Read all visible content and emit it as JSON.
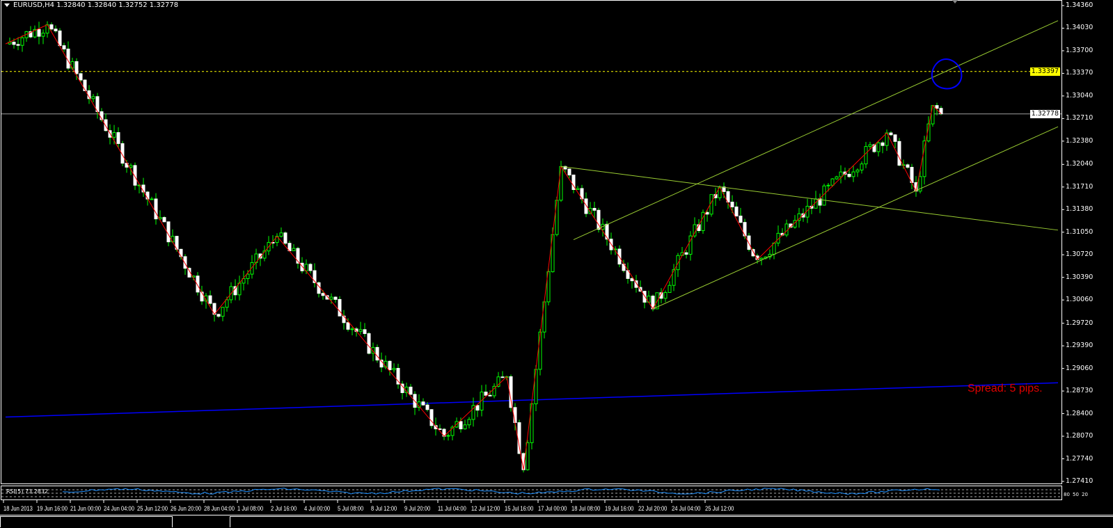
{
  "window": {
    "title": "EURUSD,H4  1.32840 1.32840 1.32752 1.32778"
  },
  "colors": {
    "background": "#000000",
    "bull_body": "#000000",
    "bear_body": "#ffffff",
    "wick": "#00ff00",
    "zigzag": "#ff0000",
    "trendline": "#9acd32",
    "blue_line": "#0000ff",
    "hline": "#ffff00",
    "bid_line": "#a0a0a0",
    "rsi": "#1e90ff",
    "spread_text": "#e00000"
  },
  "price_axis": {
    "labels": [
      "1.34360",
      "1.34030",
      "1.33700",
      "1.33370",
      "1.33040",
      "1.32710",
      "1.32380",
      "1.32040",
      "1.31710",
      "1.31380",
      "1.31050",
      "1.30720",
      "1.30390",
      "1.30060",
      "1.29720",
      "1.29390",
      "1.29060",
      "1.28730",
      "1.28400",
      "1.28070",
      "1.27740",
      "1.27410"
    ],
    "range": [
      1.2741,
      1.3436
    ],
    "hline_tag": "1.33397",
    "bid_tag": "1.32778"
  },
  "time_axis": {
    "labels": [
      "18 Jun 2013",
      "19 Jun 16:00",
      "21 Jun 00:00",
      "24 Jun 04:00",
      "25 Jun 12:00",
      "26 Jun 20:00",
      "28 Jun 04:00",
      "1 Jul 08:00",
      "2 Jul 16:00",
      "4 Jul 00:00",
      "5 Jul 08:00",
      "8 Jul 12:00",
      "9 Jul 20:00",
      "11 Jul 04:00",
      "12 Jul 12:00",
      "15 Jul 16:00",
      "17 Jul 00:00",
      "18 Jul 08:00",
      "19 Jul 16:00",
      "22 Jul 20:00",
      "24 Jul 04:00",
      "25 Jul 12:00"
    ]
  },
  "chart_data": {
    "type": "candlestick",
    "symbol": "EURUSD",
    "timeframe": "H4",
    "last_bar": {
      "open": 1.3284,
      "high": 1.3284,
      "low": 1.32752,
      "close": 1.32778
    },
    "zigzag": [
      {
        "bar": 0,
        "price": 1.338
      },
      {
        "bar": 10,
        "price": 1.3408
      },
      {
        "bar": 50,
        "price": 1.2985
      },
      {
        "bar": 65,
        "price": 1.3099
      },
      {
        "bar": 105,
        "price": 1.2807
      },
      {
        "bar": 120,
        "price": 1.2894
      },
      {
        "bar": 124,
        "price": 1.2758
      },
      {
        "bar": 133,
        "price": 1.3201
      },
      {
        "bar": 155,
        "price": 1.2993
      },
      {
        "bar": 171,
        "price": 1.3171
      },
      {
        "bar": 180,
        "price": 1.3065
      },
      {
        "bar": 211,
        "price": 1.325
      },
      {
        "bar": 218,
        "price": 1.3165
      },
      {
        "bar": 222,
        "price": 1.329
      },
      {
        "bar": 224,
        "price": 1.32778
      }
    ],
    "trendlines": [
      {
        "from": {
          "bar": 136,
          "price": 1.3094
        },
        "to": {
          "bar": 252,
          "price": 1.3414
        }
      },
      {
        "from": {
          "bar": 155,
          "price": 1.2993
        },
        "to": {
          "bar": 252,
          "price": 1.3259
        }
      },
      {
        "from": {
          "bar": 133,
          "price": 1.3201
        },
        "to": {
          "bar": 252,
          "price": 1.3108
        }
      }
    ],
    "blue_line": {
      "from": {
        "bar": 0,
        "price": 1.2835
      },
      "to": {
        "bar": 252,
        "price": 1.2885
      }
    },
    "horizontal_line": 1.33397,
    "bid": 1.32778,
    "rsi": {
      "label": "RSI(5) 73.2832",
      "levels": [
        80,
        50,
        20
      ]
    }
  },
  "spread_text": "Spread: 5 pips."
}
